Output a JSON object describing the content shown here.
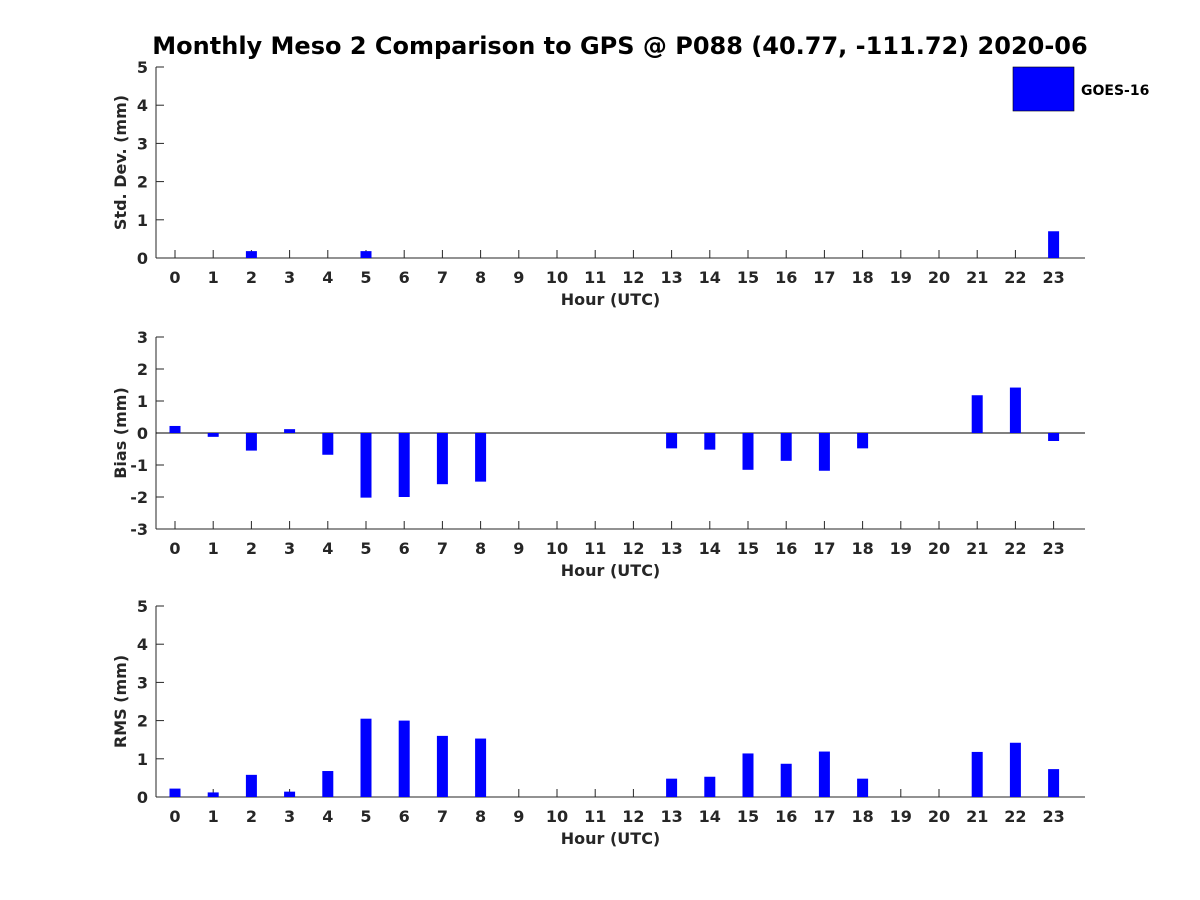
{
  "figure": {
    "title": "Monthly Meso 2 Comparison to GPS @ P088 (40.77, -111.72) 2020-06"
  },
  "legend": {
    "label": "GOES-16",
    "color": "#0000ff",
    "placement": "top-right"
  },
  "chart_data": [
    {
      "type": "bar",
      "xlabel": "Hour (UTC)",
      "ylabel": "Std. Dev. (mm)",
      "ylim": [
        0,
        5
      ],
      "yticks": [
        0,
        1,
        2,
        3,
        4,
        5
      ],
      "categories": [
        "0",
        "1",
        "2",
        "3",
        "4",
        "5",
        "6",
        "7",
        "8",
        "9",
        "10",
        "11",
        "12",
        "13",
        "14",
        "15",
        "16",
        "17",
        "18",
        "19",
        "20",
        "21",
        "22",
        "23"
      ],
      "series": [
        {
          "name": "GOES-16",
          "values": [
            0,
            0,
            0.18,
            0,
            0,
            0.18,
            0,
            0,
            0,
            0,
            0,
            0,
            0,
            0,
            0,
            0,
            0,
            0,
            0,
            0,
            0,
            0,
            0,
            0.7
          ]
        }
      ]
    },
    {
      "type": "bar",
      "xlabel": "Hour (UTC)",
      "ylabel": "Bias (mm)",
      "ylim": [
        -3,
        3
      ],
      "yticks": [
        -3,
        -2,
        -1,
        0,
        1,
        2,
        3
      ],
      "categories": [
        "0",
        "1",
        "2",
        "3",
        "4",
        "5",
        "6",
        "7",
        "8",
        "9",
        "10",
        "11",
        "12",
        "13",
        "14",
        "15",
        "16",
        "17",
        "18",
        "19",
        "20",
        "21",
        "22",
        "23"
      ],
      "series": [
        {
          "name": "GOES-16",
          "values": [
            0.22,
            -0.12,
            -0.55,
            0.12,
            -0.68,
            -2.02,
            -2.0,
            -1.6,
            -1.52,
            0,
            0,
            0,
            0,
            -0.48,
            -0.52,
            -1.15,
            -0.87,
            -1.18,
            -0.48,
            0,
            0,
            1.18,
            1.42,
            -0.25
          ]
        }
      ]
    },
    {
      "type": "bar",
      "xlabel": "Hour (UTC)",
      "ylabel": "RMS (mm)",
      "ylim": [
        0,
        5
      ],
      "yticks": [
        0,
        1,
        2,
        3,
        4,
        5
      ],
      "categories": [
        "0",
        "1",
        "2",
        "3",
        "4",
        "5",
        "6",
        "7",
        "8",
        "9",
        "10",
        "11",
        "12",
        "13",
        "14",
        "15",
        "16",
        "17",
        "18",
        "19",
        "20",
        "21",
        "22",
        "23"
      ],
      "series": [
        {
          "name": "GOES-16",
          "values": [
            0.22,
            0.12,
            0.58,
            0.14,
            0.68,
            2.05,
            2.0,
            1.6,
            1.53,
            0,
            0,
            0,
            0,
            0.48,
            0.53,
            1.14,
            0.87,
            1.19,
            0.48,
            0,
            0,
            1.18,
            1.42,
            0.73
          ]
        }
      ]
    }
  ]
}
